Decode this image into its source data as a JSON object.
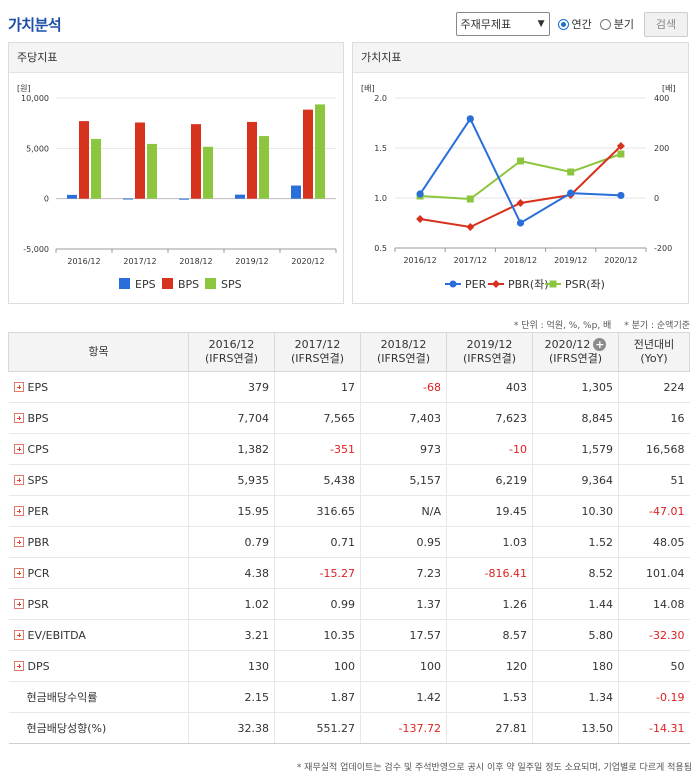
{
  "header": {
    "title": "가치분석",
    "select_value": "주재무제표",
    "radio_annual": "연간",
    "radio_quarter": "분기",
    "search_label": "검색"
  },
  "left_panel": {
    "title": "주당지표"
  },
  "right_panel": {
    "title": "가치지표"
  },
  "chart_data": [
    {
      "type": "bar",
      "categories": [
        "2016/12",
        "2017/12",
        "2018/12",
        "2019/12",
        "2020/12"
      ],
      "series": [
        {
          "name": "EPS",
          "values": [
            379,
            17,
            -68,
            403,
            1305
          ],
          "color": "#2a6ed9"
        },
        {
          "name": "BPS",
          "values": [
            7704,
            7565,
            7403,
            7623,
            8845
          ],
          "color": "#d7321e"
        },
        {
          "name": "SPS",
          "values": [
            5935,
            5438,
            5157,
            6219,
            9364
          ],
          "color": "#8cc63f"
        }
      ],
      "y_unit": "[원]",
      "ylim": [
        -5000,
        10000
      ],
      "yticks": [
        "10,000",
        "5,000",
        "0",
        "-5,000"
      ],
      "grid": true,
      "legend": "bottom"
    },
    {
      "type": "line",
      "categories": [
        "2016/12",
        "2017/12",
        "2018/12",
        "2019/12",
        "2020/12"
      ],
      "series": [
        {
          "name": "PER",
          "axis": "right",
          "values": [
            15.95,
            316.65,
            null,
            19.45,
            10.3
          ],
          "color": "#2a6ed9",
          "marker": "circle"
        },
        {
          "name": "PBR(좌)",
          "axis": "left",
          "values": [
            0.79,
            0.71,
            0.95,
            1.03,
            1.52
          ],
          "color": "#d7321e",
          "marker": "diamond"
        },
        {
          "name": "PSR(좌)",
          "axis": "left",
          "values": [
            1.02,
            0.99,
            1.37,
            1.26,
            1.44
          ],
          "color": "#8cc63f",
          "marker": "square"
        }
      ],
      "left_unit": "[배]",
      "right_unit": "[배]",
      "left_ylim": [
        0.5,
        2.0
      ],
      "right_ylim": [
        -200,
        400
      ],
      "left_ticks": [
        "2.0",
        "1.5",
        "1.0",
        "0.5"
      ],
      "right_ticks": [
        "400",
        "200",
        "0",
        "-200"
      ],
      "grid": true,
      "legend": "bottom"
    }
  ],
  "notes": {
    "unit": "* 단위 : 억원, %, %p, 배",
    "quarter": "* 분기 : 순액기준"
  },
  "table": {
    "item_header": "항목",
    "columns": [
      {
        "year": "2016/12",
        "basis": "(IFRS연결)"
      },
      {
        "year": "2017/12",
        "basis": "(IFRS연결)"
      },
      {
        "year": "2018/12",
        "basis": "(IFRS연결)"
      },
      {
        "year": "2019/12",
        "basis": "(IFRS연결)"
      },
      {
        "year": "2020/12",
        "basis": "(IFRS연결)"
      }
    ],
    "yoy_header": {
      "line1": "전년대비",
      "line2": "(YoY)"
    },
    "rows": [
      {
        "name": "EPS",
        "expand": true,
        "values": [
          "379",
          "17",
          "-68",
          "403",
          "1,305"
        ],
        "yoy": "224"
      },
      {
        "name": "BPS",
        "expand": true,
        "values": [
          "7,704",
          "7,565",
          "7,403",
          "7,623",
          "8,845"
        ],
        "yoy": "16"
      },
      {
        "name": "CPS",
        "expand": true,
        "values": [
          "1,382",
          "-351",
          "973",
          "-10",
          "1,579"
        ],
        "yoy": "16,568"
      },
      {
        "name": "SPS",
        "expand": true,
        "values": [
          "5,935",
          "5,438",
          "5,157",
          "6,219",
          "9,364"
        ],
        "yoy": "51"
      },
      {
        "name": "PER",
        "expand": true,
        "values": [
          "15.95",
          "316.65",
          "N/A",
          "19.45",
          "10.30"
        ],
        "yoy": "-47.01"
      },
      {
        "name": "PBR",
        "expand": true,
        "values": [
          "0.79",
          "0.71",
          "0.95",
          "1.03",
          "1.52"
        ],
        "yoy": "48.05"
      },
      {
        "name": "PCR",
        "expand": true,
        "values": [
          "4.38",
          "-15.27",
          "7.23",
          "-816.41",
          "8.52"
        ],
        "yoy": "101.04"
      },
      {
        "name": "PSR",
        "expand": true,
        "values": [
          "1.02",
          "0.99",
          "1.37",
          "1.26",
          "1.44"
        ],
        "yoy": "14.08"
      },
      {
        "name": "EV/EBITDA",
        "expand": true,
        "values": [
          "3.21",
          "10.35",
          "17.57",
          "8.57",
          "5.80"
        ],
        "yoy": "-32.30"
      },
      {
        "name": "DPS",
        "expand": true,
        "values": [
          "130",
          "100",
          "100",
          "120",
          "180"
        ],
        "yoy": "50"
      },
      {
        "name": "현금배당수익률",
        "expand": false,
        "values": [
          "2.15",
          "1.87",
          "1.42",
          "1.53",
          "1.34"
        ],
        "yoy": "-0.19"
      },
      {
        "name": "현금배당성향(%)",
        "expand": false,
        "values": [
          "32.38",
          "551.27",
          "-137.72",
          "27.81",
          "13.50"
        ],
        "yoy": "-14.31"
      }
    ]
  },
  "footnote": "* 재무실적 업데이트는 검수 및 주석반영으로 공시 이후 약 일주일 정도 소요되며, 기업별로 다르게 적용됨"
}
